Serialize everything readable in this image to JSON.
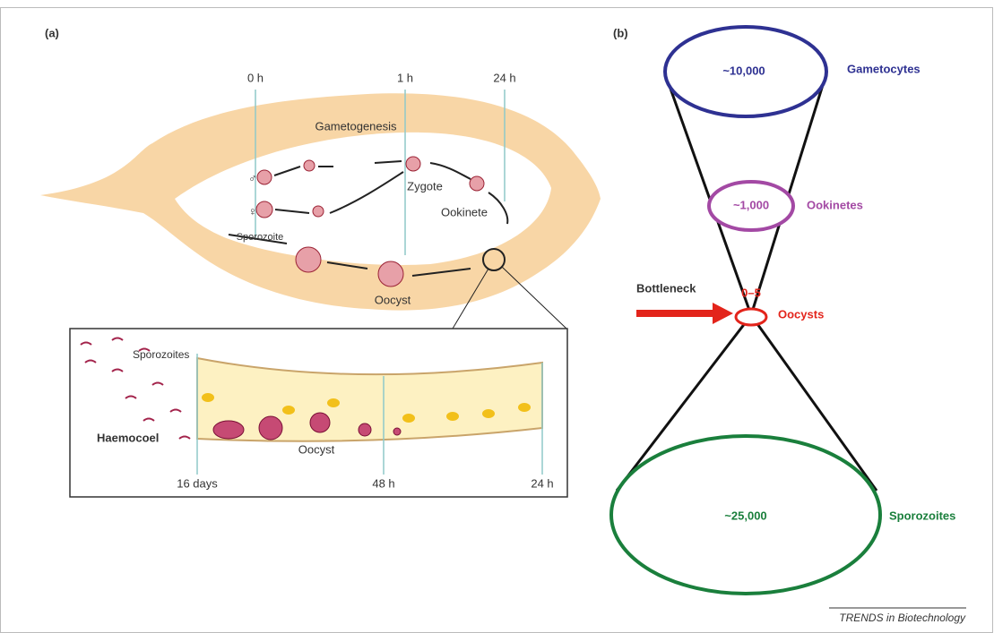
{
  "panel_a": {
    "label": "(a)",
    "timepoints": [
      "0 h",
      "1 h",
      "24 h"
    ],
    "stages": {
      "gametogenesis": "Gametogenesis",
      "male": "♂",
      "female": "♀",
      "zygote": "Zygote",
      "ookinete": "Ookinete",
      "sporozoite": "Sporozoite",
      "oocyst": "Oocyst"
    },
    "inset": {
      "sporozoites": "Sporozoites",
      "haemocoel": "Haemocoel",
      "oocyst": "Oocyst",
      "timepoints": [
        "16 days",
        "48 h",
        "24 h"
      ]
    }
  },
  "panel_b": {
    "label": "(b)",
    "levels": [
      {
        "count": "~10,000",
        "name": "Gametocytes"
      },
      {
        "count": "~1,000",
        "name": "Ookinetes"
      },
      {
        "count": "0–5",
        "name": "Oocysts"
      },
      {
        "count": "~25,000",
        "name": "Sporozoites"
      }
    ],
    "bottleneck": "Bottleneck"
  },
  "footer": "TRENDS in Biotechnology"
}
